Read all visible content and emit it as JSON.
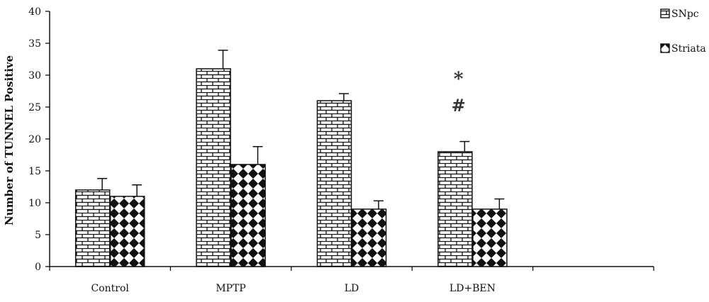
{
  "chart_data": {
    "type": "bar",
    "title": "",
    "xlabel": "",
    "ylabel": "Number of TUNNEL Positive",
    "ylim": [
      0,
      40
    ],
    "yticks": [
      0,
      5,
      10,
      15,
      20,
      25,
      30,
      35,
      40
    ],
    "grid": false,
    "legend_position": "top-right",
    "categories": [
      "Control",
      "MPTP",
      "LD",
      "LD+BEN",
      ""
    ],
    "series": [
      {
        "name": "SNpc",
        "pattern": "brick",
        "values": [
          12,
          31,
          26,
          18,
          null
        ],
        "errors": [
          1.8,
          2.9,
          1.1,
          1.6,
          null
        ]
      },
      {
        "name": "Striata",
        "pattern": "diamond-checker",
        "values": [
          11,
          16,
          9,
          9,
          null
        ],
        "errors": [
          1.8,
          2.8,
          1.3,
          1.6,
          null
        ]
      }
    ],
    "annotations": [
      {
        "text": "*",
        "category": "LD+BEN",
        "series": "SNpc",
        "y": 30
      },
      {
        "text": "#",
        "category": "LD+BEN",
        "series": "SNpc",
        "y": 25
      }
    ],
    "colors": {
      "ink": "#111111",
      "fill": "#ffffff"
    }
  }
}
